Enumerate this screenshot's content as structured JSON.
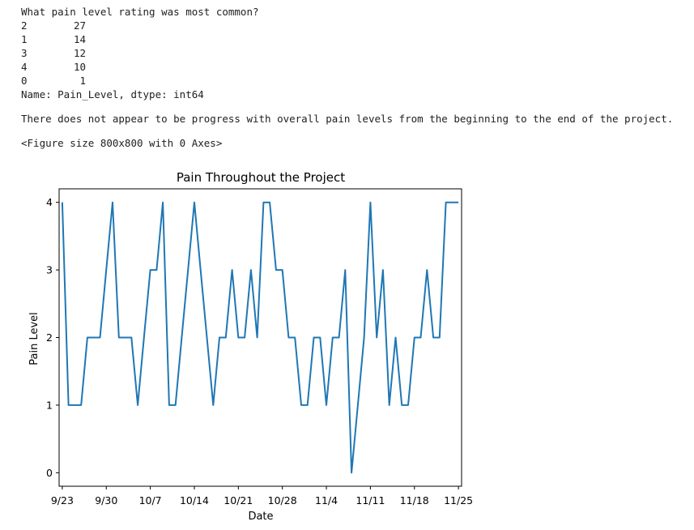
{
  "output": {
    "question": "What pain level rating was most common?",
    "value_counts": [
      {
        "key": "2",
        "count": "27"
      },
      {
        "key": "1",
        "count": "14"
      },
      {
        "key": "3",
        "count": "12"
      },
      {
        "key": "4",
        "count": "10"
      },
      {
        "key": "0",
        "count": "1"
      }
    ],
    "name_line": "Name: Pain_Level, dtype: int64",
    "statement": "There does not appear to be progress with overall pain levels from the beginning to the end of the project.",
    "figure_line": "<Figure size 800x800 with 0 Axes>"
  },
  "chart_data": {
    "type": "line",
    "title": "Pain Throughout the Project",
    "xlabel": "Date",
    "ylabel": "Pain Level",
    "x_ticks": [
      "9/23",
      "9/30",
      "10/7",
      "10/14",
      "10/21",
      "10/28",
      "11/4",
      "11/11",
      "11/18",
      "11/25"
    ],
    "y_ticks": [
      "0",
      "1",
      "2",
      "3",
      "4"
    ],
    "ylim": [
      -0.2,
      4.2
    ],
    "xlim": [
      -0.5,
      63.5
    ],
    "grid": false,
    "legend": "none",
    "series": [
      {
        "color": "#1f77b4",
        "values": [
          4,
          1,
          1,
          1,
          2,
          2,
          2,
          3,
          4,
          2,
          2,
          2,
          1,
          2,
          3,
          3,
          4,
          1,
          1,
          2,
          3,
          4,
          3,
          2,
          1,
          2,
          2,
          3,
          2,
          2,
          3,
          2,
          4,
          4,
          3,
          3,
          2,
          2,
          1,
          1,
          2,
          2,
          1,
          2,
          2,
          3,
          0,
          1,
          2,
          4,
          2,
          3,
          1,
          2,
          1,
          1,
          2,
          2,
          3,
          2,
          2,
          4,
          4,
          4
        ]
      }
    ]
  }
}
